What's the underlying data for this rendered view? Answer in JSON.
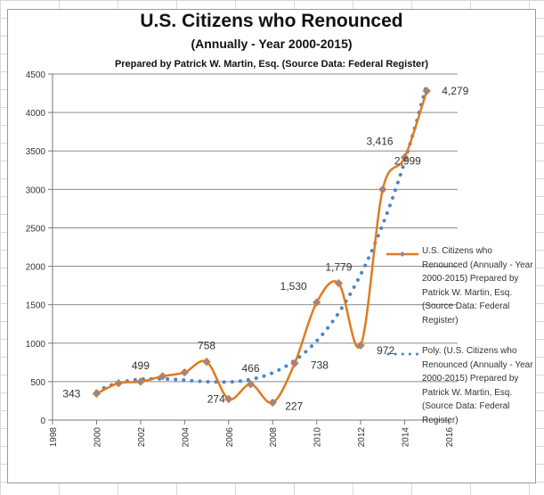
{
  "chart_data": {
    "type": "line",
    "title": "U.S. Citizens who Renounced",
    "subtitle": "(Annually - Year 2000-2015)",
    "subtitle2": "Prepared by Patrick W. Martin, Esq. (Source Data: Federal Register)",
    "x": [
      2000,
      2001,
      2002,
      2003,
      2004,
      2005,
      2006,
      2007,
      2008,
      2009,
      2010,
      2011,
      2012,
      2013,
      2014,
      2015
    ],
    "series": [
      {
        "name": "U.S. Citizens who Renounced  (Annually - Year 2000-2015) Prepared by Patrick W. Martin, Esq. (Source Data: Federal Register)",
        "values": [
          343,
          480,
          499,
          570,
          620,
          758,
          274,
          466,
          227,
          738,
          1530,
          1779,
          972,
          2999,
          3416,
          4279
        ],
        "color": "#e07a1f",
        "style": "smooth line with diamond markers"
      },
      {
        "name": "Poly. (U.S. Citizens who Renounced  (Annually - Year 2000-2015) Prepared by Patrick W. Martin, Esq. (Source Data: Federal Register)",
        "type": "polynomial trendline",
        "color": "#4a86c8",
        "style": "dotted"
      }
    ],
    "data_labels": [
      {
        "x": 2000,
        "text": "343"
      },
      {
        "x": 2002,
        "text": "499"
      },
      {
        "x": 2005,
        "text": "758"
      },
      {
        "x": 2006,
        "text": "274"
      },
      {
        "x": 2007,
        "text": "466"
      },
      {
        "x": 2008,
        "text": "227"
      },
      {
        "x": 2009,
        "text": "738"
      },
      {
        "x": 2010,
        "text": "1,530"
      },
      {
        "x": 2011,
        "text": "1,779"
      },
      {
        "x": 2012,
        "text": "972"
      },
      {
        "x": 2013,
        "text": "2,999"
      },
      {
        "x": 2014,
        "text": "3,416"
      },
      {
        "x": 2015,
        "text": "4,279"
      }
    ],
    "xlim": [
      1998,
      2016
    ],
    "ylim": [
      0,
      4500
    ],
    "xticks": [
      "1998",
      "2000",
      "2002",
      "2004",
      "2006",
      "2008",
      "2010",
      "2012",
      "2014",
      "2016"
    ],
    "yticks": [
      "0",
      "500",
      "1000",
      "1500",
      "2000",
      "2500",
      "3000",
      "3500",
      "4000",
      "4500"
    ],
    "grid": "horizontal",
    "legend": "right"
  }
}
